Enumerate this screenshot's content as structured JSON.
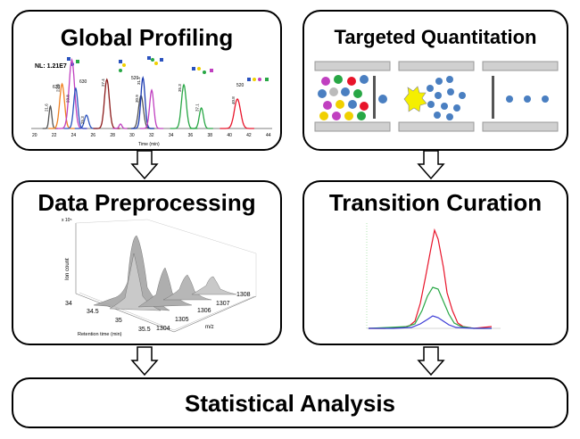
{
  "boxes": {
    "global_profiling": {
      "title": "Global Profiling",
      "nl_label": "NL: 1.21E7",
      "x_axis_label": "Time (min)",
      "x_ticks": [
        "20",
        "22",
        "24",
        "26",
        "28",
        "30",
        "32",
        "34",
        "36",
        "38",
        "40",
        "42",
        "44"
      ],
      "peak_labels": [
        "21.6",
        "22.8",
        "23.8",
        "25.3",
        "27.4",
        "30.9",
        "31.1",
        "35.3",
        "37.1",
        "40.8"
      ],
      "mass_labels": [
        "630",
        "630",
        "520",
        "520"
      ]
    },
    "targeted_quantitation": {
      "title": "Targeted Quantitation"
    },
    "data_preprocessing": {
      "title": "Data Preprocessing",
      "z_label": "Ion count",
      "x_label": "Retention time (min)",
      "y_label": "m/z",
      "exp_label": "x 10⁵",
      "rt_ticks": [
        "34",
        "34.5",
        "35",
        "35.5"
      ],
      "mz_ticks": [
        "1304",
        "1305",
        "1306",
        "1307",
        "1308"
      ]
    },
    "transition_curation": {
      "title": "Transition Curation"
    },
    "statistical_analysis": {
      "title": "Statistical Analysis"
    }
  },
  "colors": {
    "border": "#000000",
    "dot_blue": "#4a7fc1",
    "red_trace": "#e8142a",
    "green_trace": "#28a745",
    "blue_trace": "#3b3bd6"
  }
}
